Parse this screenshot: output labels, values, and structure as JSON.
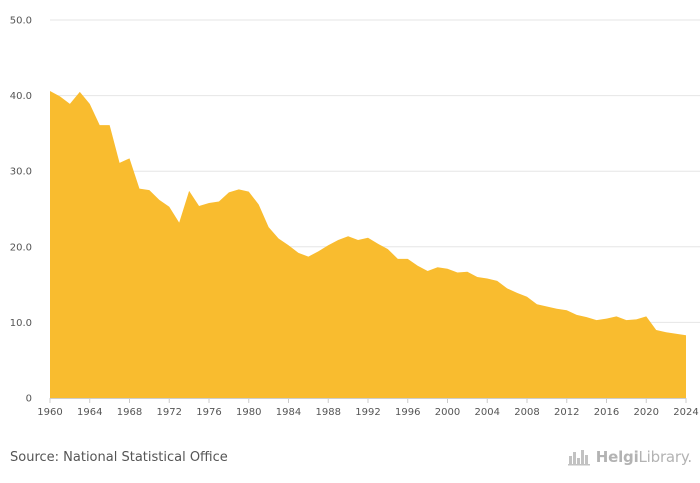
{
  "chart_data": {
    "type": "area",
    "title": "",
    "xlabel": "",
    "ylabel": "",
    "ylim": [
      0,
      50
    ],
    "xlim": [
      1960,
      2024
    ],
    "y_ticks": [
      "0",
      "10.0",
      "20.0",
      "30.0",
      "40.0",
      "50.0"
    ],
    "y_tick_values": [
      0,
      10,
      20,
      30,
      40,
      50
    ],
    "x_ticks": [
      "1960",
      "1964",
      "1968",
      "1972",
      "1976",
      "1980",
      "1984",
      "1988",
      "1992",
      "1996",
      "2000",
      "2004",
      "2008",
      "2012",
      "2016",
      "2020",
      "2024"
    ],
    "x_tick_values": [
      1960,
      1964,
      1968,
      1972,
      1976,
      1980,
      1984,
      1988,
      1992,
      1996,
      2000,
      2004,
      2008,
      2012,
      2016,
      2020,
      2024
    ],
    "grid": true,
    "fill_color": "#f9bc2f",
    "series": [
      {
        "x": [
          1960,
          1961,
          1962,
          1963,
          1964,
          1965,
          1966,
          1967,
          1968,
          1969,
          1970,
          1971,
          1972,
          1973,
          1974,
          1975,
          1976,
          1977,
          1978,
          1979,
          1980,
          1981,
          1982,
          1983,
          1984,
          1985,
          1986,
          1987,
          1988,
          1989,
          1990,
          1991,
          1992,
          1993,
          1994,
          1995,
          1996,
          1997,
          1998,
          1999,
          2000,
          2001,
          2002,
          2003,
          2004,
          2005,
          2006,
          2007,
          2008,
          2009,
          2010,
          2011,
          2012,
          2013,
          2014,
          2015,
          2016,
          2017,
          2018,
          2019,
          2020,
          2021,
          2022,
          2023,
          2024
        ],
        "values": [
          40.6,
          39.9,
          38.9,
          40.5,
          38.9,
          36.1,
          36.1,
          31.1,
          31.7,
          27.7,
          27.5,
          26.2,
          25.3,
          23.2,
          27.4,
          25.4,
          25.8,
          26.0,
          27.2,
          27.6,
          27.3,
          25.6,
          22.6,
          21.1,
          20.2,
          19.2,
          18.7,
          19.4,
          20.2,
          20.9,
          21.4,
          20.9,
          21.2,
          20.4,
          19.7,
          18.4,
          18.4,
          17.5,
          16.8,
          17.3,
          17.1,
          16.6,
          16.7,
          16.0,
          15.8,
          15.5,
          14.5,
          13.9,
          13.4,
          12.4,
          12.1,
          11.8,
          11.6,
          11.0,
          10.7,
          10.3,
          10.5,
          10.8,
          10.3,
          10.4,
          10.8,
          9.0,
          8.7,
          8.5,
          8.3
        ]
      }
    ]
  },
  "footer": {
    "source": "Source: National Statistical Office",
    "brand_part1": "Helgi",
    "brand_part2": "Library."
  }
}
